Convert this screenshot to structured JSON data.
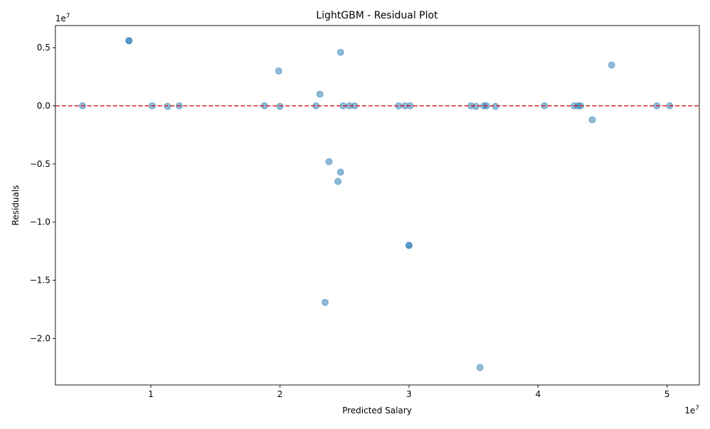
{
  "chart_data": {
    "type": "scatter",
    "title": "LightGBM - Residual Plot",
    "xlabel": "Predicted Salary",
    "ylabel": "Residuals",
    "x_offset_text": "1e7",
    "y_offset_text": "1e7",
    "xlim": [
      2600000,
      52500000
    ],
    "ylim": [
      -24000000,
      6900000
    ],
    "x_ticks": [
      {
        "value": 10000000,
        "label": "1"
      },
      {
        "value": 20000000,
        "label": "2"
      },
      {
        "value": 30000000,
        "label": "3"
      },
      {
        "value": 40000000,
        "label": "4"
      },
      {
        "value": 50000000,
        "label": "5"
      }
    ],
    "y_ticks": [
      {
        "value": 5000000,
        "label": "0.5"
      },
      {
        "value": 0,
        "label": "0.0"
      },
      {
        "value": -5000000,
        "label": "−0.5"
      },
      {
        "value": -10000000,
        "label": "−1.0"
      },
      {
        "value": -15000000,
        "label": "−1.5"
      },
      {
        "value": -20000000,
        "label": "−2.0"
      }
    ],
    "grid": false,
    "legend": "none",
    "reference_line": {
      "y": 0,
      "style": "dashed",
      "color": "#d62728"
    },
    "marker_color": "#1f77b4",
    "marker_alpha": 0.5,
    "points": [
      {
        "x": 4700000,
        "y": 0
      },
      {
        "x": 8300000,
        "y": 5600000
      },
      {
        "x": 8300000,
        "y": 5600000
      },
      {
        "x": 10100000,
        "y": 0
      },
      {
        "x": 11300000,
        "y": -50000
      },
      {
        "x": 12200000,
        "y": 0
      },
      {
        "x": 18800000,
        "y": 0
      },
      {
        "x": 19900000,
        "y": 3000000
      },
      {
        "x": 20000000,
        "y": -50000
      },
      {
        "x": 22800000,
        "y": 0
      },
      {
        "x": 23100000,
        "y": 1000000
      },
      {
        "x": 23500000,
        "y": -16900000
      },
      {
        "x": 23800000,
        "y": -4800000
      },
      {
        "x": 24500000,
        "y": -6500000
      },
      {
        "x": 24700000,
        "y": 4600000
      },
      {
        "x": 24700000,
        "y": -5700000
      },
      {
        "x": 24900000,
        "y": 0
      },
      {
        "x": 25400000,
        "y": 0
      },
      {
        "x": 25800000,
        "y": 0
      },
      {
        "x": 29200000,
        "y": 0
      },
      {
        "x": 29700000,
        "y": 0
      },
      {
        "x": 30000000,
        "y": -12000000
      },
      {
        "x": 30000000,
        "y": -12000000
      },
      {
        "x": 30100000,
        "y": 0
      },
      {
        "x": 34800000,
        "y": 0
      },
      {
        "x": 35200000,
        "y": -50000
      },
      {
        "x": 35500000,
        "y": -22500000
      },
      {
        "x": 35800000,
        "y": 0
      },
      {
        "x": 36000000,
        "y": 0
      },
      {
        "x": 36700000,
        "y": -50000
      },
      {
        "x": 40500000,
        "y": 0
      },
      {
        "x": 42800000,
        "y": 0
      },
      {
        "x": 43100000,
        "y": 0
      },
      {
        "x": 43300000,
        "y": 0
      },
      {
        "x": 44200000,
        "y": -1200000
      },
      {
        "x": 45700000,
        "y": 3500000
      },
      {
        "x": 49200000,
        "y": 0
      },
      {
        "x": 50200000,
        "y": 0
      }
    ]
  }
}
